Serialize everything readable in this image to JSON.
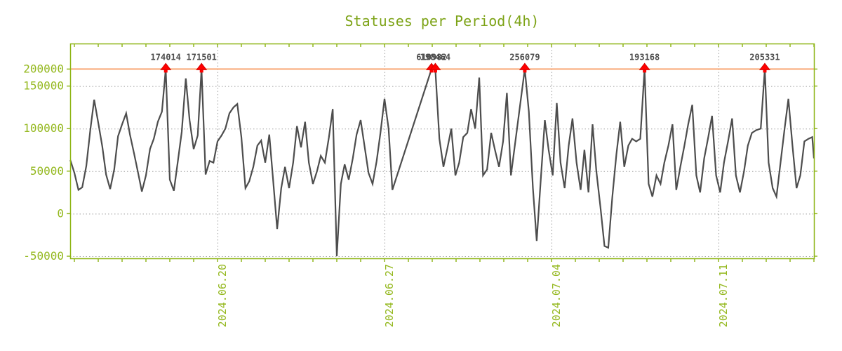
{
  "title": "Statuses per Period(4h)",
  "colors": {
    "title_green": "#7da317",
    "axis_green": "#94b81e",
    "frame_green": "#8cb412",
    "series_gray": "#4d4d4d",
    "grid_gray": "#9e9e9e",
    "cap_orange": "#f7965a",
    "peak_red": "#ff0000",
    "peak_red_dark": "#d40000",
    "peak_label_gray": "#4d4d4d",
    "background": "#ffffff"
  },
  "chart_data": {
    "type": "line",
    "title": "Statuses per Period(4h)",
    "xlabel": "",
    "ylabel": "",
    "ylim": [
      -50000,
      200000
    ],
    "cap_value": 170000,
    "grid": true,
    "legend_position": "none",
    "y_ticks": [
      {
        "value": -50000,
        "label": "-50000"
      },
      {
        "value": 0,
        "label": "0"
      },
      {
        "value": 50000,
        "label": "50000"
      },
      {
        "value": 100000,
        "label": "100000"
      },
      {
        "value": 150000,
        "label": "150000"
      },
      {
        "value": 200000,
        "label": "200000"
      }
    ],
    "y_gridlines": [
      -50000,
      0,
      50000,
      100000,
      150000
    ],
    "x_gridlines": [
      {
        "day": 0,
        "label": "2024.06.20"
      },
      {
        "day": 7,
        "label": "2024.06.27"
      },
      {
        "day": 14,
        "label": "2024.07.04"
      },
      {
        "day": 21,
        "label": "2024.07.11"
      }
    ],
    "minor_ticks_days": {
      "from": -6,
      "to": 25,
      "step": 1
    },
    "series": [
      {
        "name": "statuses",
        "points": [
          [
            -6.17,
            63000
          ],
          [
            -6.0,
            48000
          ],
          [
            -5.83,
            28000
          ],
          [
            -5.67,
            31000
          ],
          [
            -5.5,
            56000
          ],
          [
            -5.33,
            99000
          ],
          [
            -5.17,
            134000
          ],
          [
            -5.0,
            107000
          ],
          [
            -4.83,
            79000
          ],
          [
            -4.67,
            46000
          ],
          [
            -4.5,
            29000
          ],
          [
            -4.33,
            52000
          ],
          [
            -4.17,
            91000
          ],
          [
            -4.0,
            105000
          ],
          [
            -3.83,
            118000
          ],
          [
            -3.67,
            93000
          ],
          [
            -3.5,
            71000
          ],
          [
            -3.33,
            48000
          ],
          [
            -3.17,
            26000
          ],
          [
            -3.0,
            45000
          ],
          [
            -2.83,
            76000
          ],
          [
            -2.67,
            88000
          ],
          [
            -2.5,
            108000
          ],
          [
            -2.33,
            120000
          ],
          [
            -2.17,
            174014
          ],
          [
            -2.0,
            40000
          ],
          [
            -1.83,
            27000
          ],
          [
            -1.67,
            60000
          ],
          [
            -1.5,
            96000
          ],
          [
            -1.33,
            159000
          ],
          [
            -1.17,
            110000
          ],
          [
            -1.0,
            76000
          ],
          [
            -0.83,
            92000
          ],
          [
            -0.67,
            171501
          ],
          [
            -0.5,
            46000
          ],
          [
            -0.33,
            62000
          ],
          [
            -0.17,
            60000
          ],
          [
            0.0,
            85000
          ],
          [
            0.17,
            92000
          ],
          [
            0.33,
            100000
          ],
          [
            0.5,
            118000
          ],
          [
            0.67,
            125000
          ],
          [
            0.83,
            129000
          ],
          [
            1.0,
            90000
          ],
          [
            1.17,
            30000
          ],
          [
            1.33,
            38000
          ],
          [
            1.5,
            55000
          ],
          [
            1.67,
            80000
          ],
          [
            1.83,
            86000
          ],
          [
            2.0,
            60000
          ],
          [
            2.17,
            93000
          ],
          [
            2.33,
            40000
          ],
          [
            2.5,
            -18000
          ],
          [
            2.67,
            30000
          ],
          [
            2.83,
            55000
          ],
          [
            3.0,
            30000
          ],
          [
            3.17,
            60000
          ],
          [
            3.33,
            103000
          ],
          [
            3.5,
            78000
          ],
          [
            3.67,
            108000
          ],
          [
            3.83,
            60000
          ],
          [
            4.0,
            35000
          ],
          [
            4.17,
            50000
          ],
          [
            4.33,
            68000
          ],
          [
            4.5,
            60000
          ],
          [
            4.67,
            90000
          ],
          [
            4.83,
            123000
          ],
          [
            5.0,
            -50000
          ],
          [
            5.17,
            35000
          ],
          [
            5.33,
            58000
          ],
          [
            5.5,
            40000
          ],
          [
            5.67,
            65000
          ],
          [
            5.83,
            93000
          ],
          [
            6.0,
            110000
          ],
          [
            6.17,
            78000
          ],
          [
            6.33,
            48000
          ],
          [
            6.5,
            35000
          ],
          [
            6.67,
            62000
          ],
          [
            6.83,
            95000
          ],
          [
            7.0,
            135000
          ],
          [
            7.17,
            100000
          ],
          [
            7.33,
            28000
          ],
          [
            8.97,
            610982
          ],
          [
            9.13,
            198464
          ],
          [
            9.3,
            88000
          ],
          [
            9.47,
            55000
          ],
          [
            9.63,
            76000
          ],
          [
            9.8,
            100000
          ],
          [
            9.97,
            45000
          ],
          [
            10.13,
            60000
          ],
          [
            10.3,
            90000
          ],
          [
            10.47,
            95000
          ],
          [
            10.63,
            123000
          ],
          [
            10.8,
            100000
          ],
          [
            10.97,
            160000
          ],
          [
            11.13,
            45000
          ],
          [
            11.3,
            52000
          ],
          [
            11.47,
            95000
          ],
          [
            11.63,
            75000
          ],
          [
            11.8,
            55000
          ],
          [
            11.97,
            85000
          ],
          [
            12.13,
            142000
          ],
          [
            12.3,
            45000
          ],
          [
            12.88,
            256079
          ],
          [
            13.05,
            120000
          ],
          [
            13.22,
            30000
          ],
          [
            13.38,
            -32000
          ],
          [
            13.55,
            40000
          ],
          [
            13.72,
            110000
          ],
          [
            13.88,
            75000
          ],
          [
            14.05,
            45000
          ],
          [
            14.22,
            130000
          ],
          [
            14.38,
            60000
          ],
          [
            14.55,
            30000
          ],
          [
            14.72,
            80000
          ],
          [
            14.88,
            112000
          ],
          [
            15.05,
            60000
          ],
          [
            15.22,
            28000
          ],
          [
            15.38,
            75000
          ],
          [
            15.55,
            25000
          ],
          [
            15.72,
            105000
          ],
          [
            15.88,
            50000
          ],
          [
            16.05,
            8000
          ],
          [
            16.22,
            -38000
          ],
          [
            16.38,
            -40000
          ],
          [
            16.55,
            20000
          ],
          [
            16.72,
            70000
          ],
          [
            16.88,
            108000
          ],
          [
            17.05,
            55000
          ],
          [
            17.22,
            80000
          ],
          [
            17.38,
            88000
          ],
          [
            17.55,
            85000
          ],
          [
            17.72,
            88000
          ],
          [
            17.9,
            193168
          ],
          [
            18.07,
            35000
          ],
          [
            18.23,
            20000
          ],
          [
            18.4,
            45000
          ],
          [
            18.57,
            35000
          ],
          [
            18.73,
            60000
          ],
          [
            18.9,
            80000
          ],
          [
            19.07,
            105000
          ],
          [
            19.23,
            28000
          ],
          [
            19.4,
            55000
          ],
          [
            19.57,
            80000
          ],
          [
            19.73,
            105000
          ],
          [
            19.9,
            128000
          ],
          [
            20.07,
            45000
          ],
          [
            20.23,
            25000
          ],
          [
            20.4,
            65000
          ],
          [
            20.57,
            90000
          ],
          [
            20.73,
            115000
          ],
          [
            20.9,
            45000
          ],
          [
            21.07,
            25000
          ],
          [
            21.23,
            60000
          ],
          [
            21.4,
            85000
          ],
          [
            21.57,
            112000
          ],
          [
            21.73,
            45000
          ],
          [
            21.9,
            25000
          ],
          [
            22.07,
            50000
          ],
          [
            22.23,
            80000
          ],
          [
            22.4,
            95000
          ],
          [
            22.57,
            98000
          ],
          [
            22.77,
            100000
          ],
          [
            22.94,
            205331
          ],
          [
            23.1,
            60000
          ],
          [
            23.27,
            30000
          ],
          [
            23.43,
            20000
          ],
          [
            23.6,
            60000
          ],
          [
            23.77,
            100000
          ],
          [
            23.93,
            135000
          ],
          [
            24.1,
            80000
          ],
          [
            24.27,
            30000
          ],
          [
            24.43,
            45000
          ],
          [
            24.6,
            85000
          ],
          [
            24.77,
            88000
          ],
          [
            24.93,
            90000
          ],
          [
            25.0,
            65000
          ]
        ]
      }
    ],
    "peaks": [
      {
        "day": -2.17,
        "value": 174014,
        "label": "174014"
      },
      {
        "day": -0.67,
        "value": 171501,
        "label": "171501"
      },
      {
        "day": 8.97,
        "value": 610982,
        "label": "610982"
      },
      {
        "day": 9.13,
        "value": 198464,
        "label": "198464"
      },
      {
        "day": 12.88,
        "value": 256079,
        "label": "256079"
      },
      {
        "day": 17.9,
        "value": 193168,
        "label": "193168"
      },
      {
        "day": 22.94,
        "value": 205331,
        "label": "205331"
      }
    ]
  }
}
